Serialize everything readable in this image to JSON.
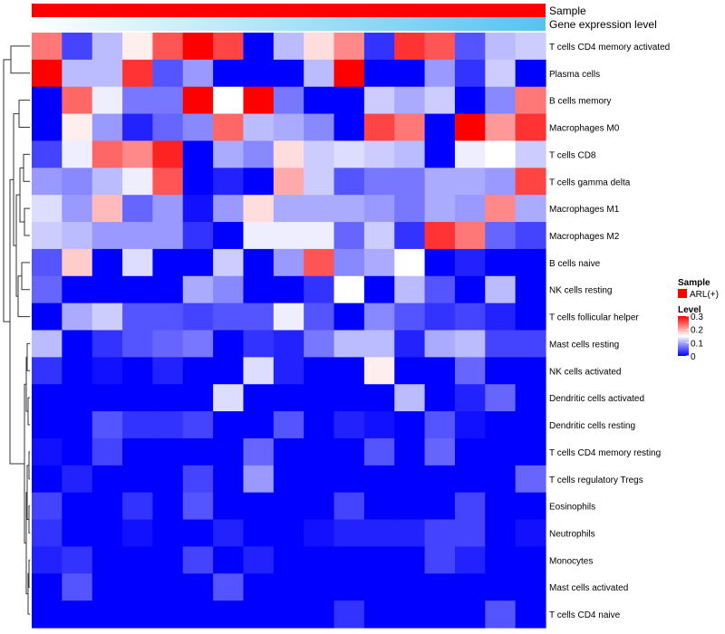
{
  "chart_data": {
    "type": "heatmap",
    "annotation_tracks": [
      {
        "name": "Sample",
        "type": "categorical",
        "color": "#ff0000",
        "value": "ARL(+)"
      },
      {
        "name": "Gene expression level",
        "type": "gradient",
        "color_start": "#ffffff",
        "color_end": "#55c4ee"
      }
    ],
    "rows": [
      "T cells CD4 memory activated",
      "Plasma cells",
      "B cells memory",
      "Macrophages M0",
      "T cells CD8",
      "T cells gamma delta",
      "Macrophages M1",
      "Macrophages M2",
      "B cells naive",
      "NK cells resting",
      "T cells follicular helper",
      "Mast cells resting",
      "NK cells activated",
      "Dendritic cells activated",
      "Dendritic cells resting",
      "T cells CD4 memory resting",
      "T cells regulatory  Tregs",
      "Eosinophils",
      "Neutrophils",
      "Monocytes",
      "Mast cells activated",
      "T cells CD4 naive"
    ],
    "n_columns": 17,
    "values": [
      [
        0.23,
        0.04,
        0.11,
        0.16,
        0.25,
        0.3,
        0.26,
        0.0,
        0.11,
        0.17,
        0.22,
        0.03,
        0.27,
        0.25,
        0.05,
        0.11,
        0.12
      ],
      [
        0.3,
        0.11,
        0.11,
        0.27,
        0.05,
        0.09,
        0.0,
        0.0,
        0.0,
        0.11,
        0.3,
        0.0,
        0.0,
        0.09,
        0.03,
        0.12,
        0.0
      ],
      [
        0.0,
        0.24,
        0.14,
        0.07,
        0.07,
        0.3,
        0.15,
        0.3,
        0.07,
        0.0,
        0.0,
        0.12,
        0.1,
        0.12,
        0.0,
        0.08,
        0.23
      ],
      [
        0.0,
        0.16,
        0.09,
        0.02,
        0.06,
        0.08,
        0.24,
        0.11,
        0.1,
        0.08,
        0.0,
        0.26,
        0.23,
        0.0,
        0.3,
        0.21,
        0.27
      ],
      [
        0.04,
        0.14,
        0.24,
        0.22,
        0.28,
        0.0,
        0.1,
        0.08,
        0.17,
        0.12,
        0.13,
        0.12,
        0.11,
        0.0,
        0.14,
        0.15,
        0.12
      ],
      [
        0.09,
        0.08,
        0.11,
        0.14,
        0.25,
        0.0,
        0.02,
        0.0,
        0.2,
        0.12,
        0.05,
        0.07,
        0.07,
        0.1,
        0.1,
        0.09,
        0.26
      ],
      [
        0.13,
        0.09,
        0.19,
        0.06,
        0.09,
        0.01,
        0.09,
        0.17,
        0.1,
        0.1,
        0.1,
        0.09,
        0.07,
        0.1,
        0.09,
        0.22,
        0.1
      ],
      [
        0.12,
        0.11,
        0.09,
        0.09,
        0.09,
        0.03,
        0.0,
        0.14,
        0.14,
        0.14,
        0.06,
        0.12,
        0.03,
        0.27,
        0.23,
        0.06,
        0.04
      ],
      [
        0.05,
        0.18,
        0.0,
        0.13,
        0.0,
        0.0,
        0.12,
        0.0,
        0.09,
        0.25,
        0.08,
        0.1,
        0.15,
        0.0,
        0.02,
        0.0,
        0.0
      ],
      [
        0.06,
        0.0,
        0.0,
        0.0,
        0.0,
        0.1,
        0.08,
        0.0,
        0.0,
        0.03,
        0.15,
        0.0,
        0.11,
        0.05,
        0.0,
        0.11,
        0.0
      ],
      [
        0.0,
        0.1,
        0.12,
        0.05,
        0.05,
        0.04,
        0.05,
        0.05,
        0.14,
        0.05,
        0.0,
        0.08,
        0.05,
        0.03,
        0.04,
        0.02,
        0.0
      ],
      [
        0.11,
        0.0,
        0.03,
        0.05,
        0.06,
        0.07,
        0.0,
        0.03,
        0.02,
        0.07,
        0.11,
        0.11,
        0.02,
        0.1,
        0.11,
        0.04,
        0.04
      ],
      [
        0.03,
        0.0,
        0.01,
        0.0,
        0.02,
        0.0,
        0.0,
        0.13,
        0.02,
        0.0,
        0.0,
        0.16,
        0.0,
        0.0,
        0.06,
        0.0,
        0.0
      ],
      [
        0.0,
        0.0,
        0.0,
        0.0,
        0.0,
        0.0,
        0.13,
        0.0,
        0.0,
        0.0,
        0.0,
        0.0,
        0.11,
        0.0,
        0.02,
        0.06,
        0.0
      ],
      [
        0.0,
        0.0,
        0.05,
        0.03,
        0.03,
        0.04,
        0.0,
        0.0,
        0.05,
        0.0,
        0.02,
        0.01,
        0.0,
        0.05,
        0.01,
        0.0,
        0.0
      ],
      [
        0.01,
        0.0,
        0.04,
        0.0,
        0.0,
        0.0,
        0.0,
        0.06,
        0.0,
        0.0,
        0.0,
        0.05,
        0.0,
        0.06,
        0.0,
        0.0,
        0.0
      ],
      [
        0.0,
        0.02,
        0.0,
        0.0,
        0.0,
        0.04,
        0.0,
        0.09,
        0.0,
        0.0,
        0.0,
        0.0,
        0.0,
        0.0,
        0.0,
        0.0,
        0.06
      ],
      [
        0.04,
        0.0,
        0.0,
        0.03,
        0.0,
        0.05,
        0.0,
        0.0,
        0.0,
        0.0,
        0.04,
        0.0,
        0.0,
        0.0,
        0.04,
        0.0,
        0.0
      ],
      [
        0.03,
        0.0,
        0.0,
        0.01,
        0.0,
        0.0,
        0.02,
        0.0,
        0.0,
        0.01,
        0.02,
        0.02,
        0.02,
        0.04,
        0.04,
        0.0,
        0.01
      ],
      [
        0.02,
        0.03,
        0.0,
        0.0,
        0.0,
        0.04,
        0.0,
        0.02,
        0.0,
        0.0,
        0.0,
        0.0,
        0.0,
        0.04,
        0.02,
        0.0,
        0.0
      ],
      [
        0.0,
        0.05,
        0.0,
        0.0,
        0.0,
        0.0,
        0.05,
        0.0,
        0.0,
        0.0,
        0.0,
        0.0,
        0.0,
        0.0,
        0.0,
        0.0,
        0.0
      ],
      [
        0.0,
        0.0,
        0.0,
        0.0,
        0.0,
        0.0,
        0.0,
        0.0,
        0.0,
        0.0,
        0.03,
        0.0,
        0.0,
        0.0,
        0.0,
        0.05,
        0.0
      ]
    ],
    "color_scale": {
      "min": 0,
      "mid": 0.15,
      "max": 0.3,
      "low": "#0000ff",
      "midcolor": "#ffffff",
      "high": "#ff0000"
    },
    "legends": {
      "sample": {
        "title": "Sample",
        "item": "ARL(+)",
        "color": "#ff0000"
      },
      "level": {
        "title": "Level",
        "ticks": [
          0.3,
          0.2,
          0.1,
          0
        ]
      }
    },
    "row_dendrogram": true
  }
}
